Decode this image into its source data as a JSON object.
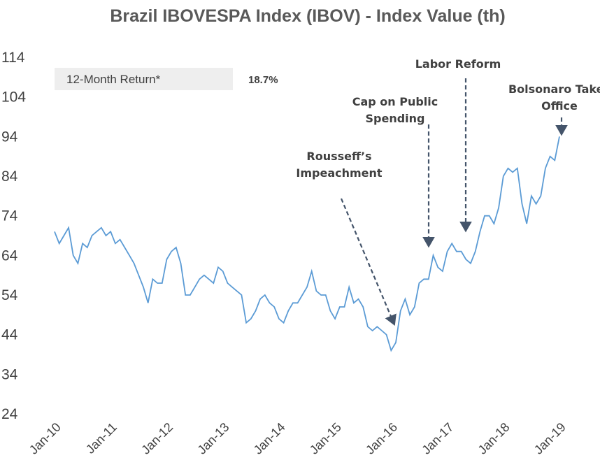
{
  "chart_data": {
    "type": "line",
    "title": "Brazil IBOVESPA Index (IBOV) - Index Value (th)",
    "return_label": "12-Month Return*",
    "return_value": "18.7%",
    "annotations": [
      "Rousseff’s Impeachment",
      "Cap on Public Spending",
      "Labor Reform",
      "Bolsonaro Takes Office"
    ],
    "categories": [
      "Jan-10",
      null,
      null,
      null,
      null,
      null,
      null,
      null,
      null,
      null,
      null,
      null,
      "Jan-11",
      null,
      null,
      null,
      null,
      null,
      null,
      null,
      null,
      null,
      null,
      null,
      "Jan-12",
      null,
      null,
      null,
      null,
      null,
      null,
      null,
      null,
      null,
      null,
      null,
      "Jan-13",
      null,
      null,
      null,
      null,
      null,
      null,
      null,
      null,
      null,
      null,
      null,
      "Jan-14",
      null,
      null,
      null,
      null,
      null,
      null,
      null,
      null,
      null,
      null,
      null,
      "Jan-15",
      null,
      null,
      null,
      null,
      null,
      null,
      null,
      null,
      null,
      null,
      null,
      "Jan-16",
      null,
      null,
      null,
      null,
      null,
      null,
      null,
      null,
      null,
      null,
      null,
      "Jan-17",
      null,
      null,
      null,
      null,
      null,
      null,
      null,
      null,
      null,
      null,
      null,
      "Jan-18",
      null,
      null,
      null,
      null,
      null,
      null,
      null,
      null,
      null,
      null,
      null,
      "Jan-19"
    ],
    "series": [
      {
        "name": "IBOV",
        "color": "#5b9bd5",
        "values": [
          70,
          67,
          69,
          71,
          64,
          62,
          67,
          66,
          69,
          70,
          71,
          69,
          70,
          67,
          68,
          66,
          64,
          62,
          59,
          56,
          52,
          58,
          57,
          57,
          63,
          65,
          66,
          62,
          54,
          54,
          56,
          58,
          59,
          58,
          57,
          61,
          60,
          57,
          56,
          55,
          54,
          47,
          48,
          50,
          53,
          54,
          52,
          51,
          48,
          47,
          50,
          52,
          52,
          54,
          56,
          60,
          55,
          54,
          54,
          50,
          48,
          51,
          51,
          56,
          52,
          53,
          51,
          46,
          45,
          46,
          45,
          44,
          40,
          42,
          50,
          53,
          49,
          51,
          57,
          58,
          58,
          64,
          61,
          60,
          65,
          67,
          65,
          65,
          63,
          62,
          65,
          70,
          74,
          74,
          72,
          76,
          84,
          86,
          85,
          86,
          77,
          72,
          79,
          77,
          79,
          86,
          89,
          88,
          94
        ]
      }
    ],
    "ylim": [
      24,
      114
    ],
    "yticks": [
      24,
      34,
      44,
      54,
      64,
      74,
      84,
      94,
      104,
      114
    ],
    "grid": false
  }
}
